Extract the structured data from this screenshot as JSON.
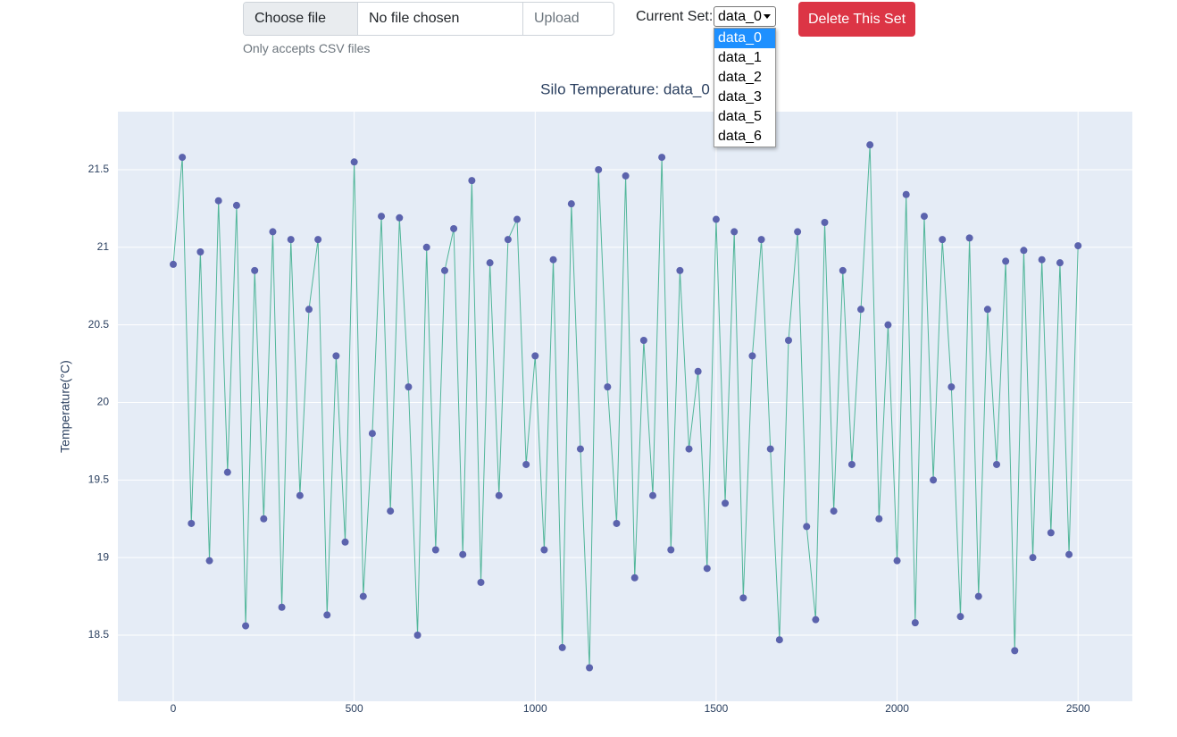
{
  "upload": {
    "choose_label": "Choose file",
    "file_name": "No file chosen",
    "button": "Upload",
    "help": "Only accepts CSV files"
  },
  "set_selector": {
    "label": "Current Set:",
    "selected": "data_0",
    "options": [
      "data_0",
      "data_1",
      "data_2",
      "data_3",
      "data_5",
      "data_6"
    ]
  },
  "delete_button": "Delete This Set",
  "chart_data": {
    "type": "line",
    "title": "Silo Temperature: data_0",
    "y_label": "Temperature(°C)",
    "x": [
      0,
      25,
      50,
      75,
      100,
      125,
      150,
      175,
      200,
      225,
      250,
      275,
      300,
      325,
      350,
      375,
      400,
      425,
      450,
      475,
      500,
      525,
      550,
      575,
      600,
      625,
      650,
      675,
      700,
      725,
      750,
      775,
      800,
      825,
      850,
      875,
      900,
      925,
      950,
      975,
      1000,
      1025,
      1050,
      1075,
      1100,
      1125,
      1150,
      1175,
      1200,
      1225,
      1250,
      1275,
      1300,
      1325,
      1350,
      1375,
      1400,
      1425,
      1450,
      1475,
      1500,
      1525,
      1550,
      1575,
      1600,
      1625,
      1650,
      1675,
      1700,
      1725,
      1750,
      1775,
      1800,
      1825,
      1850,
      1875,
      1900,
      1925,
      1950,
      1975,
      2000,
      2025,
      2050,
      2075,
      2100,
      2125,
      2150,
      2175,
      2200,
      2225,
      2250,
      2275,
      2300,
      2325,
      2350,
      2375,
      2400,
      2425,
      2450,
      2475,
      2500
    ],
    "values": [
      20.89,
      21.58,
      19.22,
      20.97,
      18.98,
      21.3,
      19.55,
      21.27,
      18.56,
      20.85,
      19.25,
      21.1,
      18.68,
      21.05,
      19.4,
      20.6,
      21.05,
      18.63,
      20.3,
      19.1,
      21.55,
      18.75,
      19.8,
      21.2,
      19.3,
      21.19,
      20.1,
      18.5,
      21.0,
      19.05,
      20.85,
      21.12,
      19.02,
      21.43,
      18.84,
      20.9,
      19.4,
      21.05,
      21.18,
      19.6,
      20.3,
      19.05,
      20.92,
      18.42,
      21.28,
      19.7,
      18.29,
      21.5,
      20.1,
      19.22,
      21.46,
      18.87,
      20.4,
      19.4,
      21.58,
      19.05,
      20.85,
      19.7,
      20.2,
      18.93,
      21.18,
      19.35,
      21.1,
      18.74,
      20.3,
      21.05,
      19.7,
      18.47,
      20.4,
      21.1,
      19.2,
      18.6,
      21.16,
      19.3,
      20.85,
      19.6,
      20.6,
      21.66,
      19.25,
      20.5,
      18.98,
      21.34,
      18.58,
      21.2,
      19.5,
      21.05,
      20.1,
      18.62,
      21.06,
      18.75,
      20.6,
      19.6,
      20.91,
      18.4,
      20.98,
      19.0,
      20.92,
      19.16,
      20.9,
      19.02,
      21.01
    ],
    "line_color": "#52b69a",
    "marker_color": "#5b63ad",
    "xlim": [
      -153,
      2650
    ],
    "ylim": [
      18.074,
      21.874
    ],
    "xticks": [
      0,
      500,
      1000,
      1500,
      2000,
      2500
    ],
    "yticks": [
      18.5,
      19,
      19.5,
      20,
      20.5,
      21,
      21.5
    ],
    "grid": true,
    "markers": true
  }
}
